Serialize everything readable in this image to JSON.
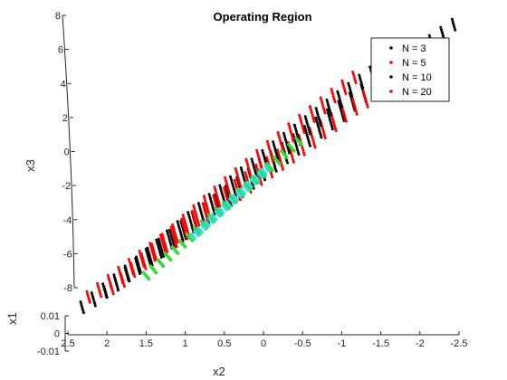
{
  "chart_data": {
    "type": "scatter",
    "title": "Operating Region",
    "projection": "3d-oblique",
    "axes": {
      "x2": {
        "label": "x2",
        "lim": [
          2.5,
          -2.5
        ],
        "ticks": [
          "2.5",
          "2",
          "1.5",
          "1",
          "0.5",
          "0",
          "-0.5",
          "-1",
          "-1.5",
          "-2",
          "-2.5"
        ],
        "tick_values": [
          2.5,
          2,
          1.5,
          1,
          0.5,
          0,
          -0.5,
          -1,
          -1.5,
          -2,
          -2.5
        ]
      },
      "x3": {
        "label": "x3",
        "lim": [
          -8,
          8
        ],
        "ticks": [
          "8",
          "6",
          "4",
          "2",
          "0",
          "-2",
          "-4",
          "-6",
          "-8"
        ],
        "tick_values": [
          8,
          6,
          4,
          2,
          0,
          -2,
          -4,
          -6,
          -8
        ]
      },
      "x1": {
        "label": "x1",
        "lim": [
          -0.01,
          0.01
        ],
        "ticks": [
          "0.01",
          "0",
          "-0.01"
        ],
        "tick_values": [
          0.01,
          0,
          -0.01
        ]
      }
    },
    "grid": false,
    "legend_position": "top-right",
    "series": [
      {
        "name": "N = 3",
        "color": "#000000",
        "x2_range": [
          2.35,
          -2.4
        ],
        "x3_range": [
          -9.2,
          7.4
        ],
        "spread": 0.22,
        "stripes": 34
      },
      {
        "name": "N = 5",
        "color": "#ff0000",
        "x2_range": [
          2.2,
          -1.75
        ],
        "x3_range": [
          -8.6,
          4.4
        ],
        "spread": 0.2,
        "stripes": 30
      },
      {
        "name": "N = 10",
        "color": "#000000",
        "x2_range": [
          2.05,
          -1.35
        ],
        "x3_range": [
          -8.3,
          4.6
        ],
        "spread": 0.16,
        "stripes": 26
      },
      {
        "name": "N = 20",
        "color": "#ff0000",
        "x2_range": [
          1.9,
          -1.2
        ],
        "x3_range": [
          -8.1,
          4.3
        ],
        "spread": 0.12,
        "stripes": 24
      }
    ],
    "core_regions": [
      {
        "color": "#33dd33",
        "x2_range": [
          1.5,
          -0.45
        ],
        "x3_range": [
          -7.3,
          0.6
        ]
      },
      {
        "color": "#33dddd",
        "x2_range": [
          0.9,
          -0.05
        ],
        "x3_range": [
          -5.0,
          -1.0
        ]
      }
    ]
  }
}
